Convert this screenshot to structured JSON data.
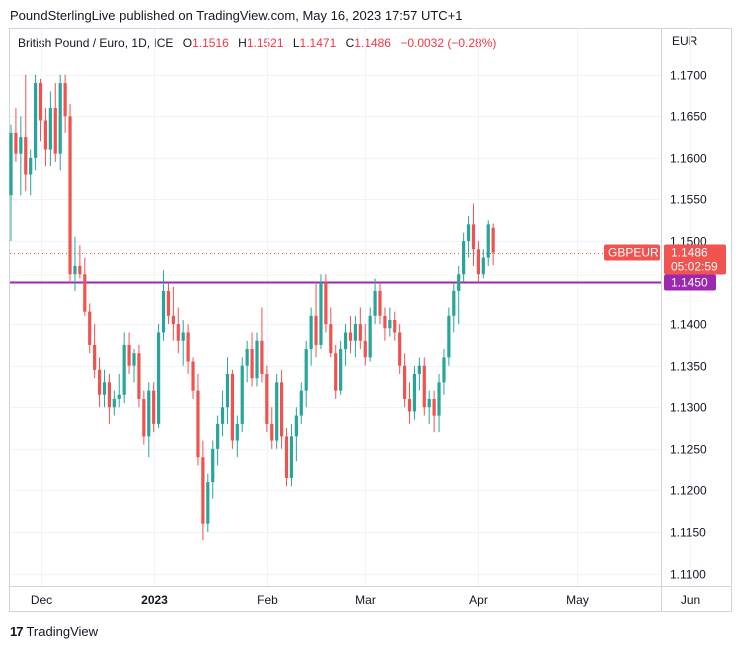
{
  "header": {
    "text": "PoundSterlingLive published on TradingView.com, May 16, 2023 17:57 UTC+1"
  },
  "legend": {
    "symbol": "British Pound / Euro, 1D, ICE",
    "o_label": "O",
    "o_value": "1.1516",
    "h_label": "H",
    "h_value": "1.1521",
    "l_label": "L",
    "l_value": "1.1471",
    "c_label": "C",
    "c_value": "1.1486",
    "change": "−0.0032 (−0.28%)"
  },
  "currency": "EUR",
  "price_tag": {
    "ticker": "GBPEUR",
    "price": "1.1486",
    "countdown": "05:02:59"
  },
  "level_tag": {
    "value": "1.1450"
  },
  "footer": {
    "brand": "TradingView",
    "logo": "17"
  },
  "colors": {
    "up": "#26a69a",
    "down": "#ef5350",
    "level_line": "#9c27b0",
    "tag_red": "#f05350",
    "tag_purple": "#9c27b0"
  },
  "chart_data": {
    "type": "candlestick",
    "y_ticks": [
      "1.1700",
      "1.1650",
      "1.1600",
      "1.1550",
      "1.1500",
      "1.1400",
      "1.1350",
      "1.1300",
      "1.1250",
      "1.1200",
      "1.1150",
      "1.1100"
    ],
    "y_tick_values": [
      1.17,
      1.165,
      1.16,
      1.155,
      1.15,
      1.14,
      1.135,
      1.13,
      1.125,
      1.12,
      1.115,
      1.11
    ],
    "ylim": [
      1.1085,
      1.1755
    ],
    "x_ticks": [
      {
        "label": "Dec",
        "index": 6,
        "bold": false
      },
      {
        "label": "2023",
        "index": 29,
        "bold": true
      },
      {
        "label": "Feb",
        "index": 52,
        "bold": false
      },
      {
        "label": "Mar",
        "index": 72,
        "bold": false
      },
      {
        "label": "Apr",
        "index": 95,
        "bold": false
      },
      {
        "label": "May",
        "index": 115,
        "bold": false
      },
      {
        "label": "Jun",
        "index": 138,
        "bold": false
      }
    ],
    "horizontal_level": 1.145,
    "last_price": 1.1486,
    "candles": [
      [
        1.1555,
        1.164,
        1.15,
        1.163
      ],
      [
        1.163,
        1.166,
        1.1595,
        1.1605
      ],
      [
        1.1605,
        1.165,
        1.1555,
        1.1625
      ],
      [
        1.1625,
        1.17,
        1.156,
        1.158
      ],
      [
        1.158,
        1.161,
        1.1555,
        1.16
      ],
      [
        1.16,
        1.17,
        1.1585,
        1.169
      ],
      [
        1.169,
        1.1695,
        1.162,
        1.1645
      ],
      [
        1.1645,
        1.166,
        1.159,
        1.161
      ],
      [
        1.161,
        1.168,
        1.159,
        1.166
      ],
      [
        1.166,
        1.169,
        1.1595,
        1.1605
      ],
      [
        1.1605,
        1.17,
        1.1585,
        1.169
      ],
      [
        1.169,
        1.17,
        1.163,
        1.165
      ],
      [
        1.165,
        1.1665,
        1.145,
        1.146
      ],
      [
        1.146,
        1.1505,
        1.144,
        1.147
      ],
      [
        1.147,
        1.1495,
        1.1455,
        1.146
      ],
      [
        1.146,
        1.148,
        1.141,
        1.1415
      ],
      [
        1.1415,
        1.1425,
        1.1365,
        1.1375
      ],
      [
        1.1375,
        1.14,
        1.1335,
        1.1345
      ],
      [
        1.1345,
        1.136,
        1.13,
        1.1315
      ],
      [
        1.1315,
        1.1345,
        1.13,
        1.133
      ],
      [
        1.133,
        1.134,
        1.128,
        1.13
      ],
      [
        1.13,
        1.132,
        1.129,
        1.131
      ],
      [
        1.131,
        1.134,
        1.13,
        1.1315
      ],
      [
        1.1315,
        1.139,
        1.1305,
        1.1375
      ],
      [
        1.1375,
        1.139,
        1.134,
        1.135
      ],
      [
        1.135,
        1.137,
        1.133,
        1.1365
      ],
      [
        1.1365,
        1.1375,
        1.13,
        1.131
      ],
      [
        1.131,
        1.132,
        1.1255,
        1.1265
      ],
      [
        1.1265,
        1.133,
        1.124,
        1.132
      ],
      [
        1.132,
        1.133,
        1.127,
        1.128
      ],
      [
        1.128,
        1.14,
        1.1275,
        1.139
      ],
      [
        1.139,
        1.1465,
        1.138,
        1.144
      ],
      [
        1.144,
        1.145,
        1.14,
        1.141
      ],
      [
        1.141,
        1.1445,
        1.138,
        1.14
      ],
      [
        1.14,
        1.142,
        1.1365,
        1.138
      ],
      [
        1.138,
        1.1405,
        1.135,
        1.139
      ],
      [
        1.139,
        1.14,
        1.134,
        1.1355
      ],
      [
        1.1355,
        1.136,
        1.131,
        1.132
      ],
      [
        1.132,
        1.134,
        1.123,
        1.124
      ],
      [
        1.124,
        1.126,
        1.114,
        1.116
      ],
      [
        1.116,
        1.122,
        1.115,
        1.121
      ],
      [
        1.121,
        1.126,
        1.119,
        1.125
      ],
      [
        1.125,
        1.129,
        1.123,
        1.128
      ],
      [
        1.128,
        1.132,
        1.1265,
        1.13
      ],
      [
        1.13,
        1.136,
        1.128,
        1.134
      ],
      [
        1.134,
        1.1345,
        1.125,
        1.126
      ],
      [
        1.126,
        1.129,
        1.124,
        1.128
      ],
      [
        1.128,
        1.136,
        1.127,
        1.135
      ],
      [
        1.135,
        1.138,
        1.133,
        1.137
      ],
      [
        1.137,
        1.139,
        1.1325,
        1.1335
      ],
      [
        1.1335,
        1.139,
        1.1325,
        1.138
      ],
      [
        1.138,
        1.142,
        1.133,
        1.134
      ],
      [
        1.134,
        1.135,
        1.127,
        1.128
      ],
      [
        1.128,
        1.13,
        1.125,
        1.126
      ],
      [
        1.126,
        1.134,
        1.125,
        1.133
      ],
      [
        1.133,
        1.1345,
        1.125,
        1.1265
      ],
      [
        1.1265,
        1.1275,
        1.1205,
        1.1215
      ],
      [
        1.1215,
        1.128,
        1.1205,
        1.1265
      ],
      [
        1.1265,
        1.13,
        1.1235,
        1.129
      ],
      [
        1.129,
        1.133,
        1.128,
        1.132
      ],
      [
        1.132,
        1.138,
        1.13,
        1.137
      ],
      [
        1.137,
        1.142,
        1.135,
        1.141
      ],
      [
        1.141,
        1.145,
        1.136,
        1.1375
      ],
      [
        1.1375,
        1.146,
        1.137,
        1.145
      ],
      [
        1.145,
        1.146,
        1.139,
        1.14
      ],
      [
        1.14,
        1.142,
        1.136,
        1.1365
      ],
      [
        1.1365,
        1.1375,
        1.131,
        1.132
      ],
      [
        1.132,
        1.138,
        1.1315,
        1.137
      ],
      [
        1.137,
        1.14,
        1.135,
        1.139
      ],
      [
        1.139,
        1.141,
        1.1365,
        1.138
      ],
      [
        1.138,
        1.141,
        1.136,
        1.14
      ],
      [
        1.14,
        1.142,
        1.137,
        1.138
      ],
      [
        1.138,
        1.14,
        1.135,
        1.136
      ],
      [
        1.136,
        1.142,
        1.1355,
        1.141
      ],
      [
        1.141,
        1.1455,
        1.14,
        1.144
      ],
      [
        1.144,
        1.145,
        1.14,
        1.141
      ],
      [
        1.141,
        1.142,
        1.138,
        1.1395
      ],
      [
        1.1395,
        1.142,
        1.1385,
        1.1405
      ],
      [
        1.1405,
        1.1415,
        1.138,
        1.139
      ],
      [
        1.139,
        1.14,
        1.134,
        1.135
      ],
      [
        1.135,
        1.1365,
        1.13,
        1.131
      ],
      [
        1.131,
        1.133,
        1.128,
        1.1295
      ],
      [
        1.1295,
        1.135,
        1.1285,
        1.134
      ],
      [
        1.134,
        1.136,
        1.132,
        1.135
      ],
      [
        1.135,
        1.136,
        1.129,
        1.13
      ],
      [
        1.13,
        1.132,
        1.128,
        1.131
      ],
      [
        1.131,
        1.132,
        1.127,
        1.129
      ],
      [
        1.129,
        1.134,
        1.127,
        1.133
      ],
      [
        1.133,
        1.137,
        1.1315,
        1.136
      ],
      [
        1.136,
        1.142,
        1.135,
        1.141
      ],
      [
        1.141,
        1.145,
        1.139,
        1.144
      ],
      [
        1.144,
        1.147,
        1.14,
        1.146
      ],
      [
        1.146,
        1.151,
        1.145,
        1.15
      ],
      [
        1.15,
        1.153,
        1.148,
        1.152
      ],
      [
        1.152,
        1.1545,
        1.147,
        1.149
      ],
      [
        1.149,
        1.15,
        1.145,
        1.146
      ],
      [
        1.146,
        1.149,
        1.1455,
        1.148
      ],
      [
        1.148,
        1.1525,
        1.147,
        1.152
      ],
      [
        1.1516,
        1.1521,
        1.1471,
        1.1486
      ]
    ]
  }
}
